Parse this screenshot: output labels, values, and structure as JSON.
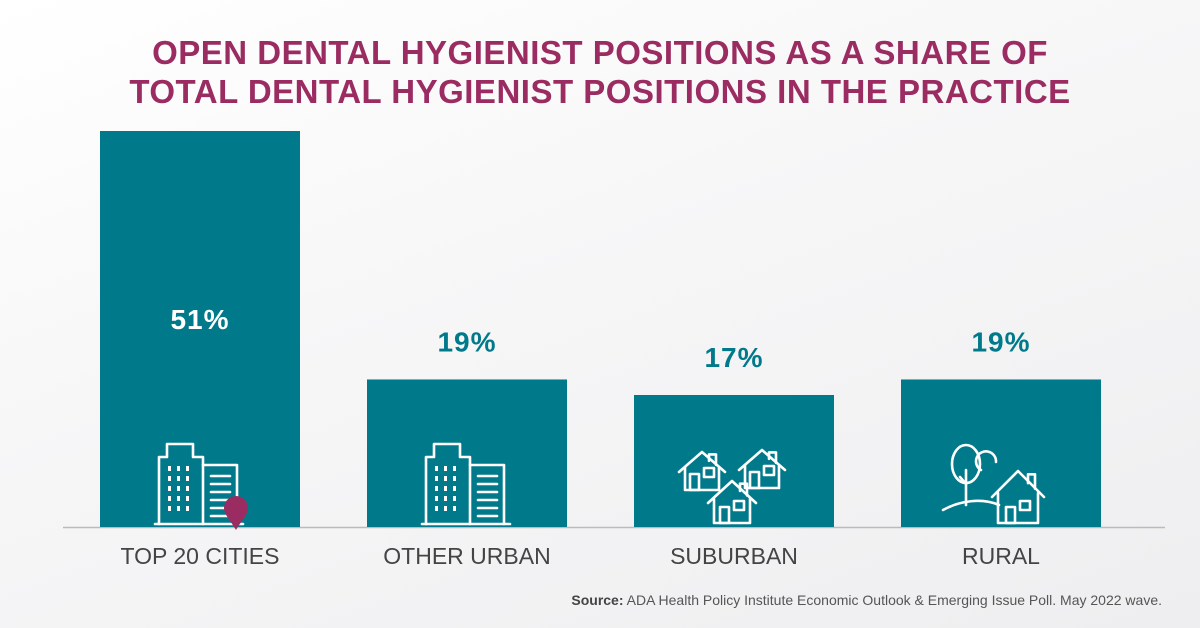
{
  "title_lines": [
    "OPEN DENTAL HYGIENIST POSITIONS AS A SHARE OF",
    "TOTAL DENTAL HYGIENIST POSITIONS IN THE PRACTICE"
  ],
  "source": {
    "label": "Source:",
    "text": "ADA Health Policy Institute Economic Outlook & Emerging Issue Poll. May 2022 wave."
  },
  "colors": {
    "bar": "#00798a",
    "title": "#9b2c62",
    "value_label_outside": "#00798a",
    "value_label_inside": "#ffffff",
    "pin": "#9b2c62",
    "axis": "#bbbbbb",
    "category_label": "#444444"
  },
  "chart_data": {
    "type": "bar",
    "categories": [
      "TOP 20 CITIES",
      "OTHER URBAN",
      "SUBURBAN",
      "RURAL"
    ],
    "values": [
      51,
      19,
      17,
      19
    ],
    "value_labels": [
      "51%",
      "19%",
      "17%",
      "19%"
    ],
    "icons": [
      "city-buildings-pin-icon",
      "urban-buildings-icon",
      "suburban-houses-icon",
      "rural-house-tree-icon"
    ],
    "title": "OPEN DENTAL HYGIENIST POSITIONS AS A SHARE OF TOTAL DENTAL HYGIENIST POSITIONS IN THE PRACTICE",
    "xlabel": "",
    "ylabel": "",
    "ylim": [
      0,
      51
    ],
    "grid": false,
    "legend": "none"
  }
}
